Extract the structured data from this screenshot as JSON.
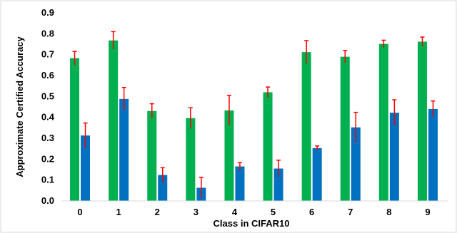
{
  "chart_data": {
    "type": "bar",
    "title": "",
    "xlabel": "Class in CIFAR10",
    "ylabel": "Approximate Certified Accuracy",
    "categories": [
      "0",
      "1",
      "2",
      "3",
      "4",
      "5",
      "6",
      "7",
      "8",
      "9"
    ],
    "ylim": [
      0,
      0.9
    ],
    "yticks": [
      "0.0",
      "0.1",
      "0.2",
      "0.3",
      "0.4",
      "0.5",
      "0.6",
      "0.7",
      "0.8",
      "0.9"
    ],
    "grid": false,
    "legend": "none",
    "series": [
      {
        "color": "#00b050",
        "values": [
          0.683,
          0.768,
          0.43,
          0.396,
          0.433,
          0.52,
          0.712,
          0.69,
          0.751,
          0.762
        ],
        "error": [
          0.032,
          0.042,
          0.035,
          0.05,
          0.072,
          0.025,
          0.055,
          0.03,
          0.018,
          0.022
        ]
      },
      {
        "color": "#0070c0",
        "values": [
          0.313,
          0.488,
          0.124,
          0.063,
          0.165,
          0.155,
          0.253,
          0.352,
          0.422,
          0.44
        ],
        "error": [
          0.06,
          0.055,
          0.035,
          0.05,
          0.018,
          0.04,
          0.01,
          0.072,
          0.062,
          0.038
        ]
      }
    ],
    "error_bar_color": "#ff0000"
  }
}
